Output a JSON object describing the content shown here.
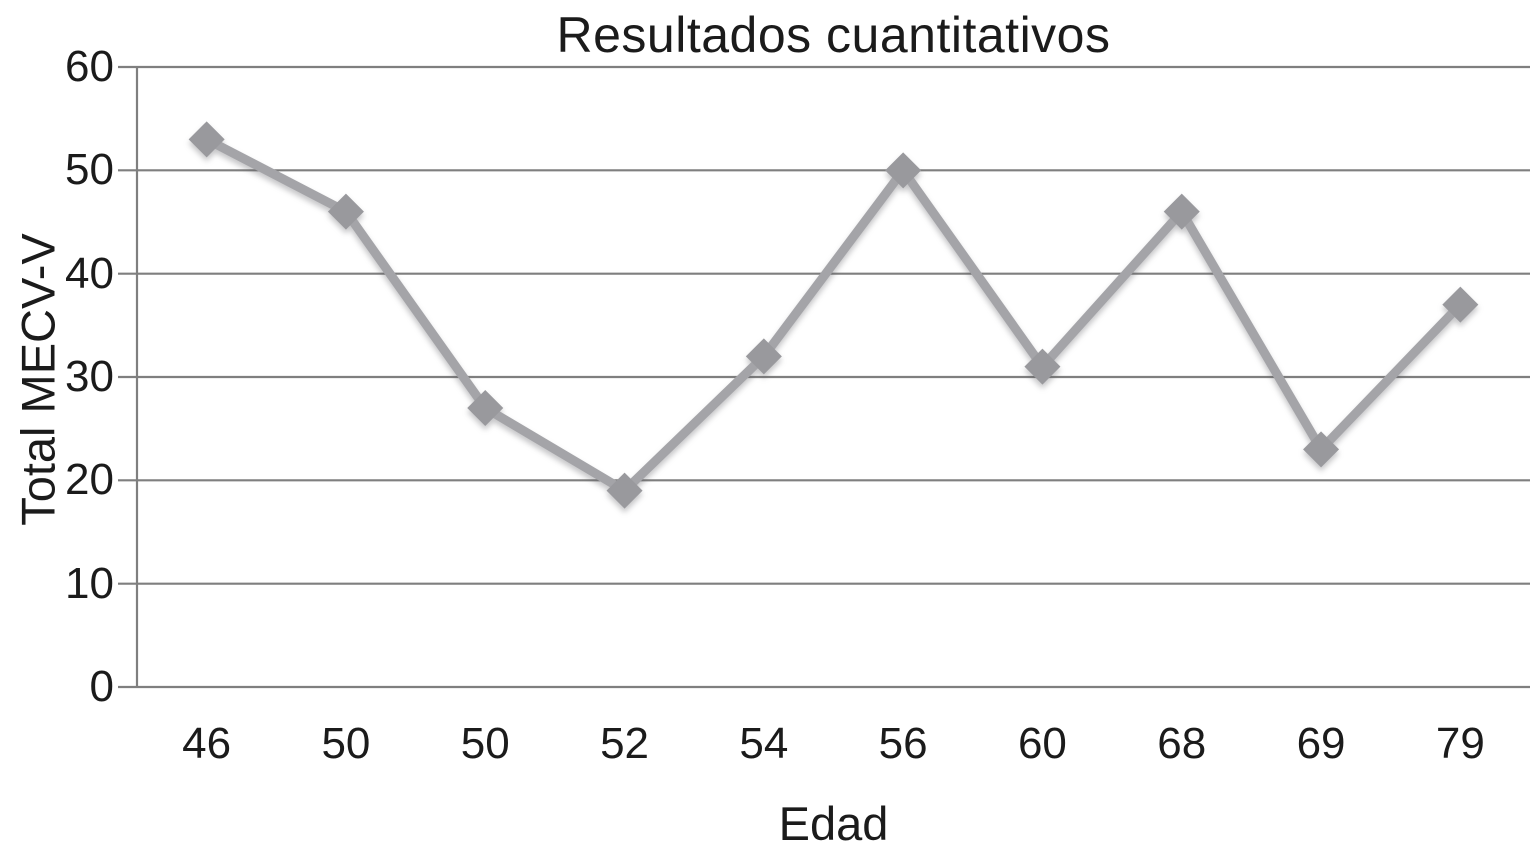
{
  "chart_data": {
    "type": "line",
    "title": "Resultados cuantitativos",
    "xlabel": "Edad",
    "ylabel": "Total MECV-V",
    "categories": [
      "46",
      "50",
      "50",
      "52",
      "54",
      "56",
      "60",
      "68",
      "69",
      "79"
    ],
    "series": [
      {
        "name": "Total MECV-V",
        "values": [
          53,
          46,
          27,
          19,
          32,
          50,
          31,
          46,
          23,
          37
        ]
      }
    ],
    "y_ticks": [
      0,
      10,
      20,
      30,
      40,
      50,
      60
    ],
    "ylim": [
      0,
      60
    ],
    "grid": "horizontal",
    "legend_position": "none",
    "marker": "diamond",
    "colors": {
      "line": "#a4a4a8",
      "marker": "#99999d",
      "gridline": "#7f7f7f",
      "axis": "#7f7f7f",
      "text": "#1b1b1b",
      "background": "#ffffff"
    }
  }
}
